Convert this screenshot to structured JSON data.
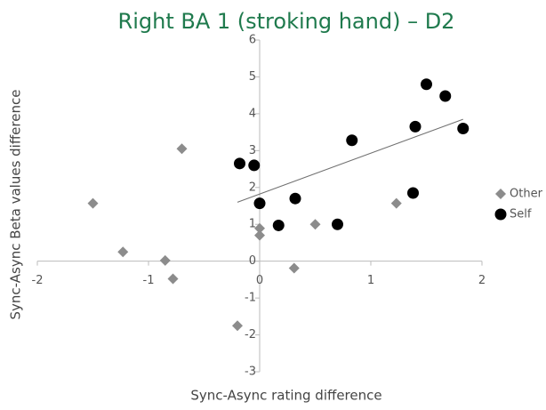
{
  "chart_data": {
    "type": "scatter",
    "title": "Right BA 1 (stroking hand) – D2",
    "x_label": "Sync-Async rating difference",
    "y_label": "Sync-Async Beta values difference",
    "xlim": [
      -2,
      2
    ],
    "xticks": [
      -2,
      -1,
      0,
      1,
      2
    ],
    "ylim": [
      -3,
      6
    ],
    "yticks": [
      -3,
      -2,
      -1,
      0,
      1,
      2,
      3,
      4,
      5,
      6
    ],
    "legend": "right",
    "series": [
      {
        "name": "Other",
        "color": "#8c8c8c",
        "marker": "diamond",
        "x": [
          -1.5,
          -1.23,
          -0.85,
          -0.78,
          -0.7,
          -0.2,
          0,
          0,
          0.31,
          0.5,
          1.23
        ],
        "values": [
          1.57,
          0.25,
          0.02,
          -0.48,
          3.05,
          -1.75,
          0.89,
          0.7,
          -0.19,
          1.0,
          1.57
        ]
      },
      {
        "name": "Self",
        "color": "#000000",
        "marker": "circle",
        "x": [
          -0.18,
          -0.05,
          0,
          0.17,
          0.32,
          0.7,
          0.83,
          1.38,
          1.4,
          1.5,
          1.67,
          1.83
        ],
        "values": [
          2.65,
          2.6,
          1.57,
          0.97,
          1.7,
          1.0,
          3.28,
          1.85,
          3.65,
          4.8,
          4.48,
          3.6
        ]
      }
    ],
    "trendline": {
      "color": "#707070",
      "x": [
        -0.2,
        1.83
      ],
      "values": [
        1.6,
        3.85
      ]
    }
  }
}
